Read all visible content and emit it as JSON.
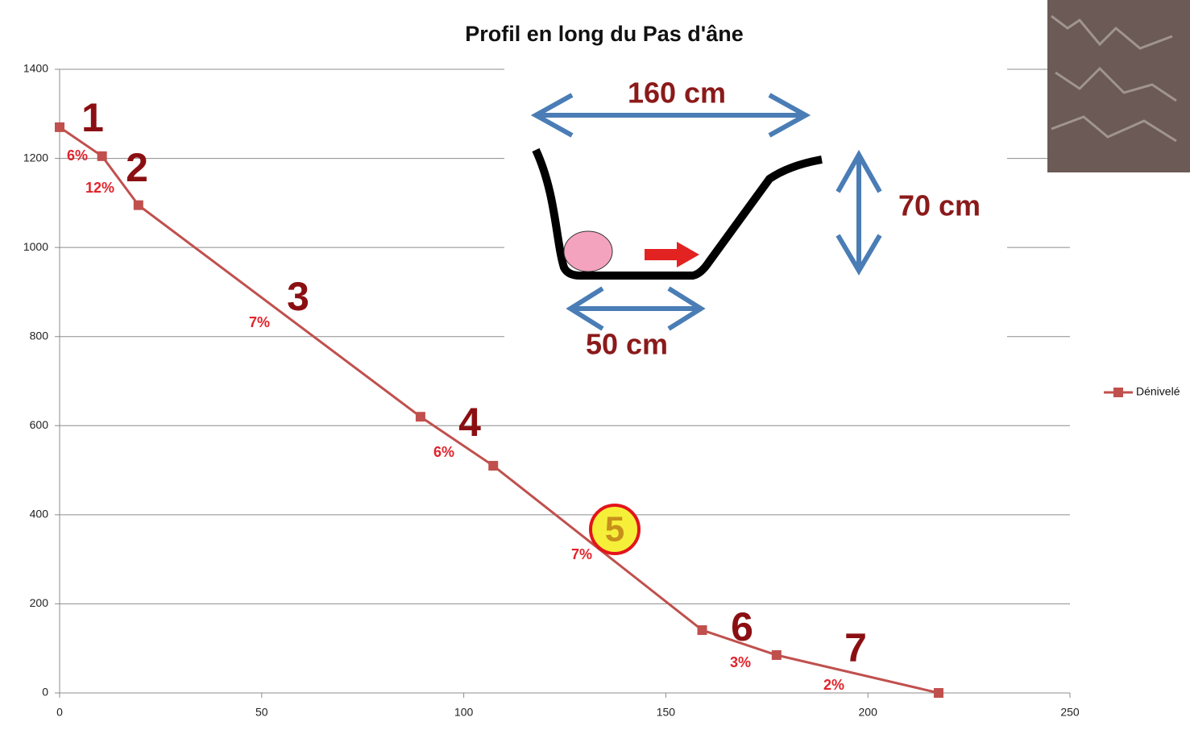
{
  "chart_data": {
    "type": "line",
    "title": "Profil en long du Pas d'âne",
    "x": [
      0,
      10.5,
      19.5,
      89.3,
      107.3,
      159,
      177.4,
      217.5
    ],
    "series": [
      {
        "name": "Dénivelé",
        "color": "#c0504d",
        "values": [
          1270,
          1205,
          1095,
          620,
          510,
          141,
          85,
          0
        ]
      }
    ],
    "xlim": [
      0,
      250
    ],
    "xticks": [
      0,
      50,
      100,
      150,
      200,
      250
    ],
    "ylim": [
      0,
      1400
    ],
    "yticks": [
      0,
      200,
      400,
      600,
      800,
      1000,
      1200,
      1400
    ],
    "grid": true,
    "legend": "right",
    "section_labels": [
      "1",
      "2",
      "3",
      "4",
      "5",
      "6",
      "7"
    ],
    "slope_labels": [
      "6%",
      "12%",
      "7%",
      "6%",
      "7%",
      "3%",
      "2%"
    ],
    "inset_labels": [
      "160 cm",
      "70 cm",
      "50 cm"
    ]
  }
}
